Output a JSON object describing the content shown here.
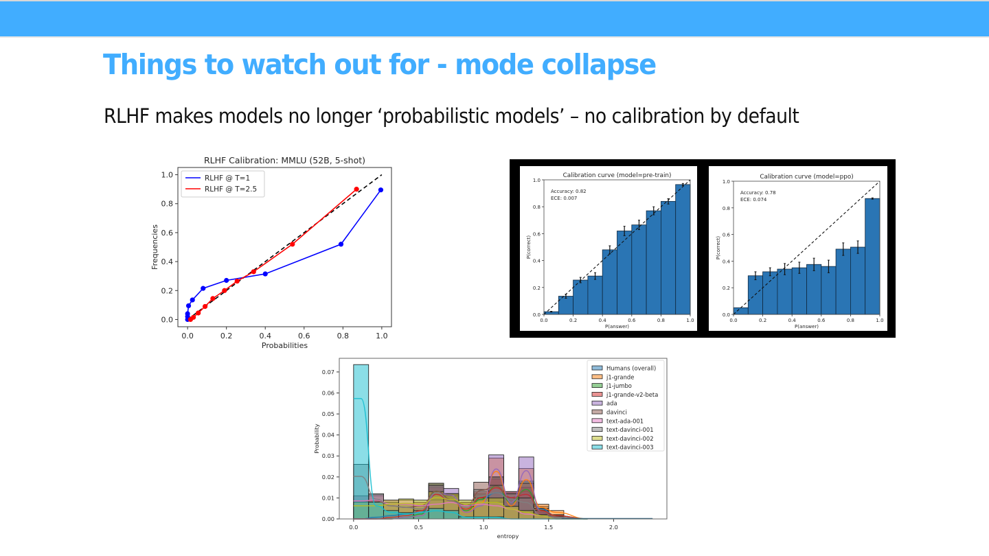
{
  "slide": {
    "title": "Things to watch out for - mode collapse",
    "subtitle": "RLHF makes models no longer ‘probabilistic models’ – no calibration by default",
    "colors": {
      "header_bar": "#41adff",
      "title": "#41adff",
      "text": "#111111"
    }
  },
  "chart_data": [
    {
      "id": "rlhf-calibration",
      "type": "line",
      "title": "RLHF  Calibration: MMLU (52B, 5-shot)",
      "xlabel": "Probabilities",
      "ylabel": "Frequencies",
      "xlim": [
        -0.05,
        1.05
      ],
      "ylim": [
        -0.05,
        1.05
      ],
      "xticks": [
        0.0,
        0.2,
        0.4,
        0.6,
        0.8,
        1.0
      ],
      "yticks": [
        0.0,
        0.2,
        0.4,
        0.6,
        0.8,
        1.0
      ],
      "xtick_labels": [
        "0.0",
        "0.2",
        "0.4",
        "0.6",
        "0.8",
        "1.0"
      ],
      "ytick_labels": [
        "0.0",
        "0.2",
        "0.4",
        "0.6",
        "0.8",
        "1.0"
      ],
      "grid": false,
      "legend_position": "upper left",
      "reference_line": {
        "style": "dashed",
        "color": "#000000",
        "from": [
          0,
          0
        ],
        "to": [
          1,
          1
        ]
      },
      "series": [
        {
          "name": "RLHF @ T=1",
          "color": "#0000ff",
          "x": [
            0.0,
            0.0,
            0.0,
            0.005,
            0.025,
            0.08,
            0.2,
            0.4,
            0.79,
            0.995
          ],
          "y": [
            0.0,
            0.02,
            0.04,
            0.095,
            0.135,
            0.215,
            0.27,
            0.315,
            0.52,
            0.895
          ]
        },
        {
          "name": "RLHF @ T=2.5",
          "color": "#ff0000",
          "x": [
            0.015,
            0.03,
            0.055,
            0.09,
            0.13,
            0.19,
            0.255,
            0.34,
            0.54,
            0.87
          ],
          "y": [
            0.0,
            0.015,
            0.045,
            0.09,
            0.145,
            0.2,
            0.265,
            0.33,
            0.52,
            0.9
          ]
        }
      ]
    },
    {
      "id": "calibration-pretrain",
      "type": "bar",
      "title": "Calibration curve (model=pre-train)",
      "xlabel": "P(answer)",
      "ylabel": "P(correct)",
      "xlim": [
        0,
        1
      ],
      "ylim": [
        0,
        1
      ],
      "xtick_labels": [
        "0.0",
        "0.2",
        "0.4",
        "0.6",
        "0.8",
        "1.0"
      ],
      "ytick_labels": [
        "0.0",
        "0.2",
        "0.4",
        "0.6",
        "0.8",
        "1.0"
      ],
      "annotations": [
        "Accuracy: 0.82",
        "ECE: 0.007"
      ],
      "bar_color": "#2a75b4",
      "bin_edges": [
        0.0,
        0.1,
        0.2,
        0.3,
        0.4,
        0.5,
        0.6,
        0.7,
        0.8,
        0.9,
        1.0
      ],
      "values": [
        0.02,
        0.135,
        0.255,
        0.285,
        0.48,
        0.62,
        0.665,
        0.77,
        0.84,
        0.965
      ],
      "errors": [
        0.003,
        0.015,
        0.02,
        0.025,
        0.03,
        0.035,
        0.035,
        0.03,
        0.02,
        0.008
      ]
    },
    {
      "id": "calibration-ppo",
      "type": "bar",
      "title": "Calibration curve (model=ppo)",
      "xlabel": "P(answer)",
      "ylabel": "P(correct)",
      "xlim": [
        0,
        1
      ],
      "ylim": [
        0,
        1
      ],
      "xtick_labels": [
        "0.0",
        "0.2",
        "0.4",
        "0.6",
        "0.8",
        "1.0"
      ],
      "ytick_labels": [
        "0.0",
        "0.2",
        "0.4",
        "0.6",
        "0.8",
        "1.0"
      ],
      "annotations": [
        "Accuracy: 0.78",
        "ECE: 0.074"
      ],
      "bar_color": "#2a75b4",
      "bin_edges": [
        0.0,
        0.1,
        0.2,
        0.3,
        0.4,
        0.5,
        0.6,
        0.7,
        0.8,
        0.9,
        1.0
      ],
      "values": [
        0.05,
        0.29,
        0.32,
        0.34,
        0.35,
        0.375,
        0.36,
        0.49,
        0.505,
        0.87
      ],
      "errors": [
        0.0,
        0.03,
        0.03,
        0.042,
        0.042,
        0.047,
        0.047,
        0.047,
        0.047,
        0.005
      ]
    },
    {
      "id": "entropy-histogram",
      "type": "bar",
      "subtype": "histogram with KDE",
      "title": "",
      "xlabel": "entropy",
      "ylabel": "Probability",
      "xlim": [
        -0.11,
        2.41
      ],
      "ylim": [
        0,
        0.0765
      ],
      "xticks": [
        0.0,
        0.5,
        1.0,
        1.5,
        2.0
      ],
      "xtick_labels": [
        "0.0",
        "0.5",
        "1.0",
        "1.5",
        "2.0"
      ],
      "yticks": [
        0.0,
        0.01,
        0.02,
        0.03,
        0.04,
        0.05,
        0.06,
        0.07
      ],
      "ytick_labels": [
        "0.00",
        "0.01",
        "0.02",
        "0.03",
        "0.04",
        "0.05",
        "0.06",
        "0.07"
      ],
      "legend_position": "upper right",
      "bin_width": 0.1155,
      "categories": [
        "0.00",
        "0.12",
        "0.23",
        "0.35",
        "0.46",
        "0.58",
        "0.69",
        "0.81",
        "0.92",
        "1.04",
        "1.16",
        "1.27",
        "1.39",
        "1.50"
      ],
      "series": [
        {
          "name": "Humans (overall)",
          "color": "#1f77b4",
          "values": [
            0.0,
            0.001,
            0.002,
            0.003,
            0.004,
            0.015,
            0.012,
            0.008,
            0.012,
            0.016,
            0.013,
            0.015,
            0.006,
            0.002
          ]
        },
        {
          "name": "j1-grande",
          "color": "#ff7f0e",
          "values": [
            0.0,
            0.0,
            0.0,
            0.001,
            0.002,
            0.016,
            0.012,
            0.004,
            0.01,
            0.029,
            0.008,
            0.024,
            0.007,
            0.004
          ]
        },
        {
          "name": "j1-jumbo",
          "color": "#2ca02c",
          "values": [
            0.0,
            0.0,
            0.0,
            0.001,
            0.003,
            0.017,
            0.012,
            0.005,
            0.012,
            0.02,
            0.01,
            0.018,
            0.005,
            0.002
          ]
        },
        {
          "name": "j1-grande-v2-beta",
          "color": "#d62728",
          "values": [
            0.0,
            0.0,
            0.001,
            0.002,
            0.005,
            0.015,
            0.011,
            0.006,
            0.013,
            0.019,
            0.013,
            0.015,
            0.005,
            0.002
          ]
        },
        {
          "name": "ada",
          "color": "#9467bd",
          "values": [
            0.0,
            0.0,
            0.0,
            0.001,
            0.002,
            0.016,
            0.0145,
            0.004,
            0.008,
            0.0305,
            0.01,
            0.0295,
            0.004,
            0.001
          ]
        },
        {
          "name": "davinci",
          "color": "#8c564b",
          "values": [
            0.011,
            0.011,
            0.008,
            0.007,
            0.008,
            0.017,
            0.012,
            0.008,
            0.0175,
            0.02,
            0.012,
            0.017,
            0.004,
            0.001
          ]
        },
        {
          "name": "text-ada-001",
          "color": "#e377c2",
          "values": [
            0.011,
            0.0115,
            0.009,
            0.009,
            0.008,
            0.009,
            0.01,
            0.008,
            0.009,
            0.008,
            0.006,
            0.003,
            0.002,
            0.0
          ]
        },
        {
          "name": "text-davinci-001",
          "color": "#7f7f7f",
          "values": [
            0.026,
            0.012,
            0.008,
            0.007,
            0.006,
            0.016,
            0.011,
            0.007,
            0.014,
            0.016,
            0.012,
            0.01,
            0.002,
            0.001
          ]
        },
        {
          "name": "text-davinci-002",
          "color": "#bcbd22",
          "values": [
            0.008,
            0.008,
            0.009,
            0.0095,
            0.009,
            0.013,
            0.012,
            0.009,
            0.01,
            0.01,
            0.006,
            0.004,
            0.002,
            0.0
          ]
        },
        {
          "name": "text-davinci-003",
          "color": "#17becf",
          "values": [
            0.0735,
            0.008,
            0.004,
            0.003,
            0.004,
            0.005,
            0.004,
            0.001,
            0.001,
            0.001,
            0.0,
            0.0,
            0.0,
            0.0
          ]
        }
      ]
    }
  ]
}
